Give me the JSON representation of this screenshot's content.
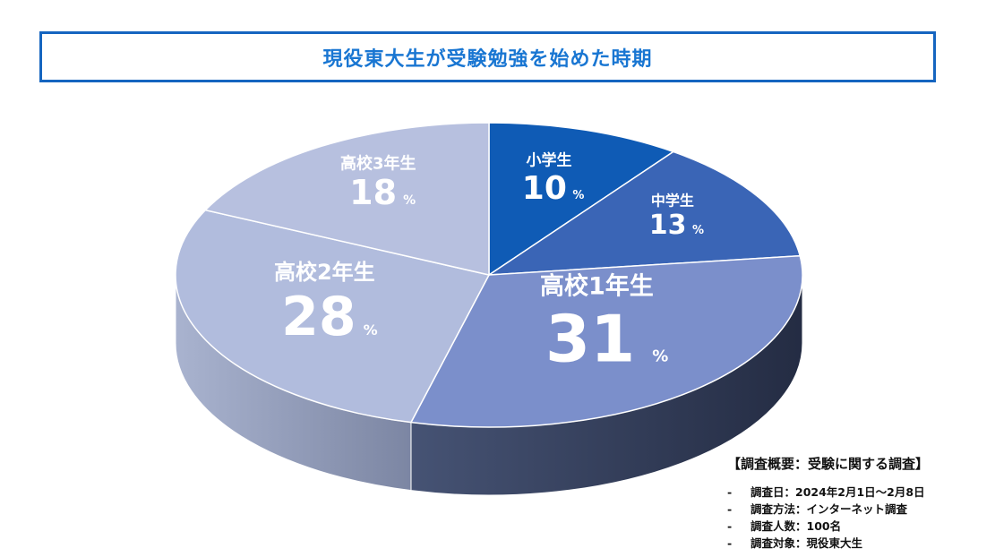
{
  "title": "現役東大生が受験勉強を始めた時期",
  "chart_data": {
    "type": "pie",
    "style": "3d",
    "unit": "%",
    "slices": [
      {
        "label": "小学生",
        "value": 10,
        "color": "#0f5bb5"
      },
      {
        "label": "中学生",
        "value": 13,
        "color": "#3a65b6"
      },
      {
        "label": "高校1年生",
        "value": 31,
        "color": "#7b8fcb"
      },
      {
        "label": "高校2年生",
        "value": 28,
        "color": "#b1bcdd"
      },
      {
        "label": "高校3年生",
        "value": 18,
        "color": "#b7c0df"
      }
    ],
    "legend": "none"
  },
  "survey": {
    "title": "【調査概要：受験に関する調査】",
    "items": [
      {
        "dash": "-",
        "text": "調査日：2024年2月1日～2月8日"
      },
      {
        "dash": "-",
        "text": "調査方法：インターネット調査"
      },
      {
        "dash": "-",
        "text": "調査人数：100名"
      },
      {
        "dash": "-",
        "text": "調査対象：現役東大生"
      }
    ]
  }
}
